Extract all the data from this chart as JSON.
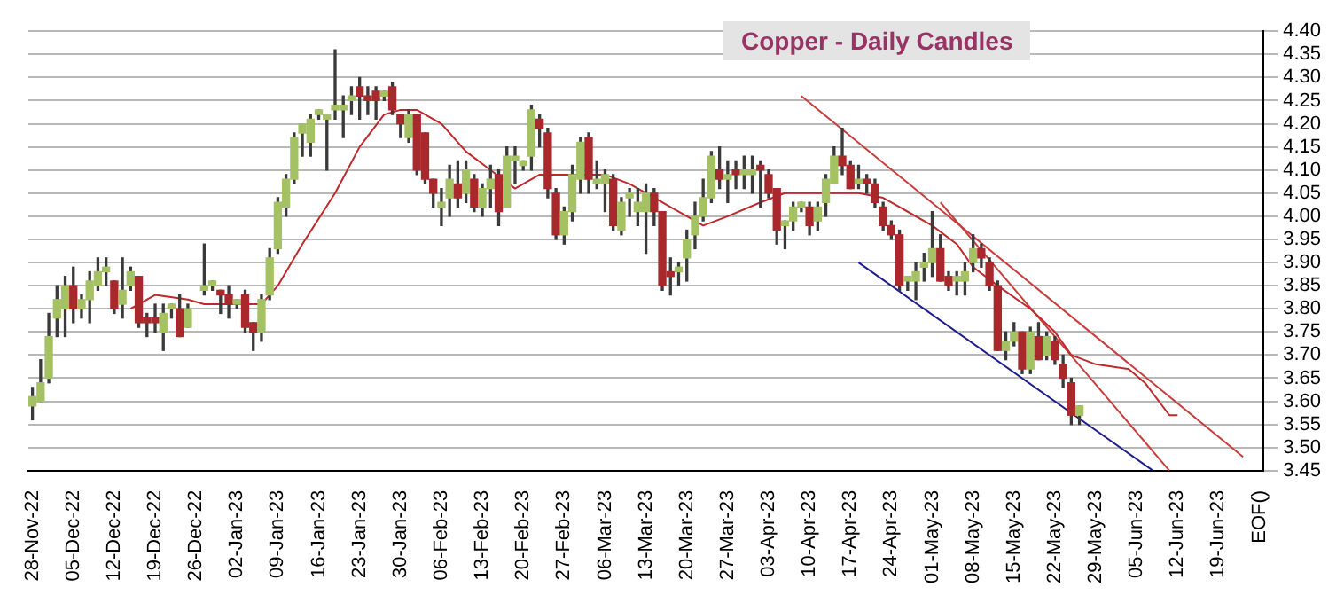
{
  "chart_data": {
    "type": "candlestick",
    "title": "Copper - Daily Candles",
    "categories": [
      "28-Nov-22",
      null,
      null,
      null,
      null,
      "05-Dec-22",
      null,
      null,
      null,
      null,
      "12-Dec-22",
      null,
      null,
      null,
      null,
      "19-Dec-22",
      null,
      null,
      null,
      null,
      "26-Dec-22",
      null,
      null,
      null,
      null,
      "02-Jan-23",
      null,
      null,
      null,
      null,
      "09-Jan-23",
      null,
      null,
      null,
      null,
      "16-Jan-23",
      null,
      null,
      null,
      null,
      "23-Jan-23",
      null,
      null,
      null,
      null,
      "30-Jan-23",
      null,
      null,
      null,
      null,
      "06-Feb-23",
      null,
      null,
      null,
      null,
      "13-Feb-23",
      null,
      null,
      null,
      null,
      "20-Feb-23",
      null,
      null,
      null,
      null,
      "27-Feb-23",
      null,
      null,
      null,
      null,
      "06-Mar-23",
      null,
      null,
      null,
      null,
      "13-Mar-23",
      null,
      null,
      null,
      null,
      "20-Mar-23",
      null,
      null,
      null,
      null,
      "27-Mar-23",
      null,
      null,
      null,
      null,
      "03-Apr-23",
      null,
      null,
      null,
      null,
      "10-Apr-23",
      null,
      null,
      null,
      null,
      "17-Apr-23",
      null,
      null,
      null,
      null,
      "24-Apr-23",
      null,
      null,
      null,
      null,
      "01-May-23",
      null,
      null,
      null,
      null,
      "08-May-23",
      null,
      null,
      null,
      null,
      "15-May-23",
      null,
      null,
      null,
      null,
      "22-May-23",
      null,
      null,
      null,
      null,
      "29-May-23",
      null,
      null,
      null,
      null,
      "05-Jun-23",
      null,
      null,
      null,
      null,
      "12-Jun-23",
      null,
      null,
      null,
      null,
      "19-Jun-23",
      null,
      null,
      null,
      null,
      "EOF()"
    ],
    "ohlc": [
      [
        3.59,
        3.63,
        3.56,
        3.61
      ],
      [
        3.6,
        3.69,
        3.6,
        3.64
      ],
      [
        3.65,
        3.79,
        3.64,
        3.74
      ],
      [
        3.78,
        3.85,
        3.74,
        3.82
      ],
      [
        3.8,
        3.87,
        3.74,
        3.85
      ],
      [
        3.85,
        3.89,
        3.77,
        3.8
      ],
      [
        3.8,
        3.83,
        3.78,
        3.82
      ],
      [
        3.82,
        3.88,
        3.77,
        3.86
      ],
      [
        3.85,
        3.91,
        3.84,
        3.88
      ],
      [
        3.88,
        3.91,
        3.85,
        3.89
      ],
      [
        3.86,
        3.86,
        3.79,
        3.8
      ],
      [
        3.81,
        3.91,
        3.78,
        3.84
      ],
      [
        3.85,
        3.89,
        3.84,
        3.88
      ],
      [
        3.87,
        3.87,
        3.76,
        3.77
      ],
      [
        3.78,
        3.79,
        3.74,
        3.77
      ],
      [
        3.78,
        3.81,
        3.75,
        3.77
      ],
      [
        3.75,
        3.81,
        3.71,
        3.79
      ],
      [
        3.8,
        3.81,
        3.78,
        3.81
      ],
      [
        3.8,
        3.83,
        3.74,
        3.74
      ],
      [
        3.76,
        3.81,
        3.76,
        3.8
      ],
      null,
      [
        3.84,
        3.94,
        3.83,
        3.85
      ],
      [
        3.85,
        3.86,
        3.84,
        3.86
      ],
      [
        3.84,
        3.84,
        3.79,
        3.83
      ],
      [
        3.83,
        3.85,
        3.78,
        3.81
      ],
      [
        3.81,
        3.82,
        3.8,
        3.82
      ],
      [
        3.83,
        3.84,
        3.75,
        3.76
      ],
      [
        3.77,
        3.77,
        3.71,
        3.75
      ],
      [
        3.75,
        3.83,
        3.73,
        3.82
      ],
      [
        3.83,
        3.93,
        3.82,
        3.91
      ],
      [
        3.93,
        4.04,
        3.92,
        4.03
      ],
      [
        4.02,
        4.09,
        4.0,
        4.08
      ],
      [
        4.08,
        4.18,
        4.07,
        4.17
      ],
      [
        4.18,
        4.2,
        4.13,
        4.2
      ],
      [
        4.16,
        4.22,
        4.13,
        4.21
      ],
      [
        4.22,
        4.23,
        4.21,
        4.23
      ],
      [
        4.21,
        4.22,
        4.1,
        4.22
      ],
      [
        4.23,
        4.36,
        4.21,
        4.24
      ],
      [
        4.23,
        4.26,
        4.17,
        4.24
      ],
      [
        4.25,
        4.28,
        4.22,
        4.26
      ],
      [
        4.28,
        4.3,
        4.21,
        4.26
      ],
      [
        4.26,
        4.28,
        4.22,
        4.25
      ],
      [
        4.27,
        4.28,
        4.21,
        4.25
      ],
      [
        4.26,
        4.27,
        4.25,
        4.27
      ],
      [
        4.28,
        4.29,
        4.22,
        4.23
      ],
      [
        4.22,
        4.22,
        4.17,
        4.2
      ],
      [
        4.17,
        4.23,
        4.16,
        4.22
      ],
      [
        4.22,
        4.22,
        4.09,
        4.1
      ],
      [
        4.18,
        4.18,
        4.07,
        4.08
      ],
      [
        4.08,
        4.08,
        4.02,
        4.05
      ],
      [
        4.02,
        4.06,
        3.98,
        4.03
      ],
      [
        4.04,
        4.11,
        4.0,
        4.08
      ],
      [
        4.07,
        4.12,
        4.02,
        4.04
      ],
      [
        4.05,
        4.12,
        4.03,
        4.1
      ],
      [
        4.08,
        4.09,
        4.01,
        4.02
      ],
      [
        4.02,
        4.07,
        4.0,
        4.06
      ],
      [
        4.06,
        4.11,
        4.02,
        4.08
      ],
      [
        4.09,
        4.1,
        3.98,
        4.01
      ],
      [
        4.02,
        4.15,
        4.02,
        4.13
      ],
      [
        4.12,
        4.15,
        4.07,
        4.13
      ],
      [
        4.11,
        4.12,
        4.1,
        4.12
      ],
      [
        4.13,
        4.24,
        4.1,
        4.23
      ],
      [
        4.21,
        4.22,
        4.15,
        4.19
      ],
      [
        4.18,
        4.19,
        4.04,
        4.06
      ],
      [
        4.05,
        4.06,
        3.95,
        3.96
      ],
      [
        3.96,
        4.02,
        3.94,
        4.01
      ],
      [
        4.01,
        4.11,
        3.99,
        4.09
      ],
      [
        4.08,
        4.17,
        4.05,
        4.16
      ],
      [
        4.17,
        4.18,
        4.05,
        4.08
      ],
      [
        4.07,
        4.12,
        4.06,
        4.08
      ],
      [
        4.07,
        4.1,
        4.01,
        4.09
      ],
      [
        4.08,
        4.09,
        3.97,
        3.98
      ],
      [
        3.97,
        4.04,
        3.96,
        4.03
      ],
      [
        4.04,
        4.06,
        4.0,
        4.05
      ],
      [
        4.01,
        4.06,
        3.98,
        4.03
      ],
      [
        4.01,
        4.07,
        3.92,
        4.05
      ],
      [
        4.05,
        4.06,
        3.98,
        4.01
      ],
      [
        4.01,
        4.01,
        3.84,
        3.85
      ],
      [
        3.88,
        3.91,
        3.83,
        3.87
      ],
      [
        3.88,
        3.9,
        3.85,
        3.89
      ],
      [
        3.91,
        3.97,
        3.86,
        3.95
      ],
      [
        3.96,
        4.03,
        3.93,
        4.0
      ],
      [
        4.0,
        4.08,
        3.99,
        4.04
      ],
      [
        4.04,
        4.14,
        4.03,
        4.13
      ],
      [
        4.1,
        4.15,
        4.06,
        4.08
      ],
      [
        4.08,
        4.12,
        4.03,
        4.09
      ],
      [
        4.1,
        4.12,
        4.06,
        4.09
      ],
      [
        4.09,
        4.13,
        4.06,
        4.1
      ],
      [
        4.09,
        4.13,
        4.05,
        4.1
      ],
      [
        4.11,
        4.12,
        4.02,
        4.1
      ],
      [
        4.09,
        4.1,
        4.04,
        4.05
      ],
      [
        4.06,
        4.06,
        3.94,
        3.97
      ],
      [
        3.98,
        3.99,
        3.93,
        3.99
      ],
      [
        3.99,
        4.03,
        3.97,
        4.02
      ],
      [
        4.02,
        4.03,
        4.01,
        4.03
      ],
      [
        4.02,
        4.03,
        3.96,
        3.98
      ],
      [
        3.99,
        4.03,
        3.97,
        4.02
      ],
      [
        4.03,
        4.09,
        4.0,
        4.08
      ],
      [
        4.07,
        4.15,
        4.07,
        4.13
      ],
      [
        4.13,
        4.19,
        4.09,
        4.11
      ],
      [
        4.11,
        4.12,
        4.06,
        4.06
      ],
      [
        4.07,
        4.11,
        4.06,
        4.08
      ],
      [
        4.08,
        4.09,
        4.05,
        4.07
      ],
      [
        4.07,
        4.08,
        4.02,
        4.03
      ],
      [
        4.02,
        4.03,
        3.97,
        3.98
      ],
      [
        3.98,
        3.99,
        3.95,
        3.96
      ],
      [
        3.96,
        3.97,
        3.84,
        3.85
      ],
      [
        3.86,
        3.87,
        3.84,
        3.87
      ],
      [
        3.86,
        3.9,
        3.82,
        3.88
      ],
      [
        3.89,
        3.92,
        3.86,
        3.9
      ],
      [
        3.9,
        4.01,
        3.87,
        3.93
      ],
      [
        3.93,
        3.96,
        3.86,
        3.86
      ],
      [
        3.87,
        3.88,
        3.84,
        3.85
      ],
      [
        3.86,
        3.88,
        3.83,
        3.87
      ],
      [
        3.86,
        3.9,
        3.83,
        3.88
      ],
      [
        3.9,
        3.96,
        3.88,
        3.93
      ],
      [
        3.93,
        3.94,
        3.89,
        3.91
      ],
      [
        3.9,
        3.91,
        3.84,
        3.85
      ],
      [
        3.85,
        3.86,
        3.71,
        3.71
      ],
      [
        3.71,
        3.75,
        3.69,
        3.73
      ],
      [
        3.73,
        3.77,
        3.72,
        3.75
      ],
      [
        3.75,
        3.75,
        3.66,
        3.67
      ],
      [
        3.67,
        3.76,
        3.66,
        3.75
      ],
      [
        3.74,
        3.77,
        3.69,
        3.69
      ],
      [
        3.7,
        3.75,
        3.69,
        3.74
      ],
      [
        3.73,
        3.74,
        3.68,
        3.69
      ],
      [
        3.68,
        3.7,
        3.63,
        3.65
      ],
      [
        3.64,
        3.65,
        3.55,
        3.57
      ],
      [
        3.57,
        3.59,
        3.55,
        3.59
      ],
      null,
      null,
      null,
      null,
      null,
      null,
      null,
      null,
      null,
      null,
      null,
      null,
      null,
      null,
      null,
      null,
      null,
      null,
      null,
      null,
      null,
      null
    ],
    "colors": [
      "#a4c263",
      "#a4c263",
      "#a4c263",
      "#a4c263",
      "#a4c263",
      "#a8282c",
      "#a4c263",
      "#a4c263",
      "#a4c263",
      "#a4c263",
      "#a8282c",
      "#a4c263",
      "#a4c263",
      "#a8282c",
      "#a8282c",
      "#a8282c",
      "#a4c263",
      "#a4c263",
      "#a8282c",
      "#a4c263",
      null,
      "#a4c263",
      "#a4c263",
      "#a8282c",
      "#a8282c",
      "#a4c263",
      "#a8282c",
      "#a8282c",
      "#a4c263",
      "#a4c263",
      "#a4c263",
      "#a4c263",
      "#a4c263",
      "#a4c263",
      "#a4c263",
      "#a4c263",
      "#a4c263",
      "#a4c263",
      "#a4c263",
      "#a4c263",
      "#a8282c",
      "#a8282c",
      "#a8282c",
      "#a4c263",
      "#a8282c",
      "#a8282c",
      "#a4c263",
      "#a8282c",
      "#a8282c",
      "#a8282c",
      "#a4c263",
      "#a4c263",
      "#a8282c",
      "#a4c263",
      "#a8282c",
      "#a4c263",
      "#a4c263",
      "#a8282c",
      "#a4c263",
      "#a4c263",
      "#a4c263",
      "#a4c263",
      "#a8282c",
      "#a8282c",
      "#a8282c",
      "#a4c263",
      "#a4c263",
      "#a4c263",
      "#a8282c",
      "#a4c263",
      "#a4c263",
      "#a8282c",
      "#a4c263",
      "#a4c263",
      "#a4c263",
      "#a4c263",
      "#a8282c",
      "#a8282c",
      "#a8282c",
      "#a4c263",
      "#a4c263",
      "#a4c263",
      "#a4c263",
      "#a4c263",
      "#a8282c",
      "#a4c263",
      "#a8282c",
      "#a4c263",
      "#a4c263",
      "#a8282c",
      "#a8282c",
      "#a8282c",
      "#a4c263",
      "#a4c263",
      "#a4c263",
      "#a8282c",
      "#a4c263",
      "#a4c263",
      "#a4c263",
      "#a8282c",
      "#a8282c",
      "#a4c263",
      "#a8282c",
      "#a8282c",
      "#a8282c",
      "#a8282c",
      "#a8282c",
      "#a4c263",
      "#a4c263",
      "#a4c263",
      "#a4c263",
      "#a8282c",
      "#a8282c",
      "#a4c263",
      "#a4c263",
      "#a4c263",
      "#a8282c",
      "#a8282c",
      "#a8282c",
      "#a4c263",
      "#a4c263",
      "#a8282c",
      "#a4c263",
      "#a8282c",
      "#a4c263",
      "#a8282c",
      "#a8282c",
      "#a8282c",
      "#a4c263",
      null,
      null,
      null,
      null,
      null,
      null,
      null,
      null,
      null,
      null,
      null,
      null,
      null,
      null,
      null,
      null,
      null,
      null,
      null,
      null,
      null,
      null
    ],
    "series": [
      {
        "type": "line",
        "color": "#c0282c",
        "values": [
          null,
          null,
          null,
          null,
          null,
          null,
          null,
          null,
          null,
          null,
          null,
          null,
          3.8,
          null,
          null,
          3.83,
          null,
          null,
          null,
          3.82,
          null,
          3.81,
          null,
          null,
          null,
          3.81,
          null,
          null,
          3.81,
          null,
          3.85,
          null,
          null,
          3.94,
          null,
          null,
          null,
          4.05,
          null,
          null,
          4.15,
          null,
          null,
          4.22,
          null,
          4.23,
          null,
          4.23,
          null,
          null,
          4.2,
          null,
          null,
          4.14,
          null,
          null,
          4.1,
          null,
          null,
          4.06,
          null,
          null,
          4.09,
          null,
          null,
          null,
          4.09,
          null,
          null,
          null,
          4.09,
          null,
          null,
          4.07,
          null,
          null,
          null,
          4.03,
          null,
          null,
          null,
          null,
          3.98,
          null,
          null,
          4.0,
          null,
          null,
          null,
          4.03,
          null,
          null,
          4.05,
          null,
          null,
          4.05,
          null,
          null,
          null,
          null,
          null,
          4.05,
          null,
          null,
          4.04,
          null,
          4.02,
          null,
          null,
          null,
          3.98,
          null,
          null,
          3.94,
          null,
          3.89,
          null,
          null,
          3.85,
          null,
          null,
          null,
          3.8,
          null,
          null,
          3.75,
          null,
          3.7,
          null,
          null,
          3.68,
          null,
          null,
          null,
          3.67,
          null,
          3.64,
          null,
          null,
          3.57,
          3.57,
          null,
          null,
          null,
          null,
          null,
          null,
          null,
          null,
          null,
          null
        ]
      },
      {
        "type": "line",
        "color": "#c83c3c",
        "values": [
          null,
          null,
          null,
          null,
          null,
          null,
          null,
          null,
          null,
          null,
          null,
          null,
          null,
          null,
          null,
          null,
          null,
          null,
          null,
          null,
          null,
          null,
          null,
          null,
          null,
          null,
          null,
          null,
          null,
          null,
          null,
          null,
          null,
          null,
          null,
          null,
          null,
          null,
          null,
          null,
          null,
          null,
          null,
          null,
          null,
          null,
          null,
          null,
          null,
          null,
          null,
          null,
          null,
          null,
          null,
          null,
          null,
          null,
          null,
          null,
          null,
          null,
          null,
          null,
          null,
          null,
          null,
          null,
          null,
          null,
          null,
          null,
          null,
          null,
          null,
          null,
          null,
          null,
          null,
          null,
          null,
          null,
          null,
          null,
          null,
          null,
          null,
          null,
          null,
          null,
          null,
          null,
          null,
          null,
          4.26,
          null,
          null,
          null,
          null,
          null,
          null,
          null,
          null,
          null,
          null,
          null,
          null,
          null,
          null,
          null,
          null,
          null,
          null,
          null,
          null,
          null,
          null,
          null,
          null,
          null,
          null,
          null,
          null,
          null,
          null,
          null,
          null,
          null,
          null,
          null,
          null,
          null,
          null,
          null,
          null,
          null,
          null,
          null,
          null,
          null,
          null,
          null,
          null,
          null,
          null,
          null,
          null,
          null,
          3.48,
          null,
          null
        ]
      },
      {
        "type": "line",
        "color": "#c83c3c",
        "values": [
          null,
          null,
          null,
          null,
          null,
          null,
          null,
          null,
          null,
          null,
          null,
          null,
          null,
          null,
          null,
          null,
          null,
          null,
          null,
          null,
          null,
          null,
          null,
          null,
          null,
          null,
          null,
          null,
          null,
          null,
          null,
          null,
          null,
          null,
          null,
          null,
          null,
          null,
          null,
          null,
          null,
          null,
          null,
          null,
          null,
          null,
          null,
          null,
          null,
          null,
          null,
          null,
          null,
          null,
          null,
          null,
          null,
          null,
          null,
          null,
          null,
          null,
          null,
          null,
          null,
          null,
          null,
          null,
          null,
          null,
          null,
          null,
          null,
          null,
          null,
          null,
          null,
          null,
          null,
          null,
          null,
          null,
          null,
          null,
          null,
          null,
          null,
          null,
          null,
          null,
          null,
          null,
          null,
          null,
          null,
          null,
          null,
          null,
          null,
          null,
          null,
          null,
          null,
          null,
          null,
          null,
          null,
          null,
          null,
          null,
          null,
          4.03,
          null,
          null,
          null,
          null,
          null,
          null,
          null,
          null,
          null,
          null,
          null,
          null,
          null,
          null,
          null,
          null,
          null,
          null,
          null,
          null,
          null,
          null,
          null,
          null,
          null,
          null,
          null,
          3.45,
          null,
          null,
          null,
          null,
          null,
          null,
          null,
          null,
          null,
          null,
          null
        ]
      },
      {
        "type": "line",
        "color": "#1c1c8c",
        "values": [
          null,
          null,
          null,
          null,
          null,
          null,
          null,
          null,
          null,
          null,
          null,
          null,
          null,
          null,
          null,
          null,
          null,
          null,
          null,
          null,
          null,
          null,
          null,
          null,
          null,
          null,
          null,
          null,
          null,
          null,
          null,
          null,
          null,
          null,
          null,
          null,
          null,
          null,
          null,
          null,
          null,
          null,
          null,
          null,
          null,
          null,
          null,
          null,
          null,
          null,
          null,
          null,
          null,
          null,
          null,
          null,
          null,
          null,
          null,
          null,
          null,
          null,
          null,
          null,
          null,
          null,
          null,
          null,
          null,
          null,
          null,
          null,
          null,
          null,
          null,
          null,
          null,
          null,
          null,
          null,
          null,
          null,
          null,
          null,
          null,
          null,
          null,
          null,
          null,
          null,
          null,
          null,
          null,
          null,
          null,
          null,
          null,
          null,
          null,
          null,
          null,
          3.9,
          null,
          null,
          null,
          null,
          null,
          null,
          null,
          null,
          null,
          null,
          null,
          null,
          null,
          null,
          null,
          null,
          null,
          null,
          null,
          null,
          null,
          null,
          null,
          null,
          null,
          null,
          null,
          null,
          null,
          null,
          null,
          null,
          null,
          null,
          null,
          3.45,
          null,
          null,
          null,
          null,
          null,
          null,
          null,
          null,
          null,
          null,
          null,
          null,
          null
        ]
      }
    ],
    "ylim": [
      3.45,
      4.4
    ],
    "yticks": [
      {
        "value": 3.45,
        "label": "3.45"
      },
      {
        "value": 3.5,
        "label": "3.50"
      },
      {
        "value": 3.55,
        "label": "3.55"
      },
      {
        "value": 3.6,
        "label": "3.60"
      },
      {
        "value": 3.65,
        "label": "3.65"
      },
      {
        "value": 3.7,
        "label": "3.70"
      },
      {
        "value": 3.75,
        "label": "3.75"
      },
      {
        "value": 3.8,
        "label": "3.80"
      },
      {
        "value": 3.85,
        "label": "3.85"
      },
      {
        "value": 3.9,
        "label": "3.90"
      },
      {
        "value": 3.95,
        "label": "3.95"
      },
      {
        "value": 4.0,
        "label": "4.00"
      },
      {
        "value": 4.05,
        "label": "4.05"
      },
      {
        "value": 4.1,
        "label": "4.10"
      },
      {
        "value": 4.15,
        "label": "4.15"
      },
      {
        "value": 4.2,
        "label": "4.20"
      },
      {
        "value": 4.25,
        "label": "4.25"
      },
      {
        "value": 4.3,
        "label": "4.30"
      },
      {
        "value": 4.35,
        "label": "4.35"
      },
      {
        "value": 4.4,
        "label": "4.40"
      }
    ],
    "grid": "y"
  }
}
